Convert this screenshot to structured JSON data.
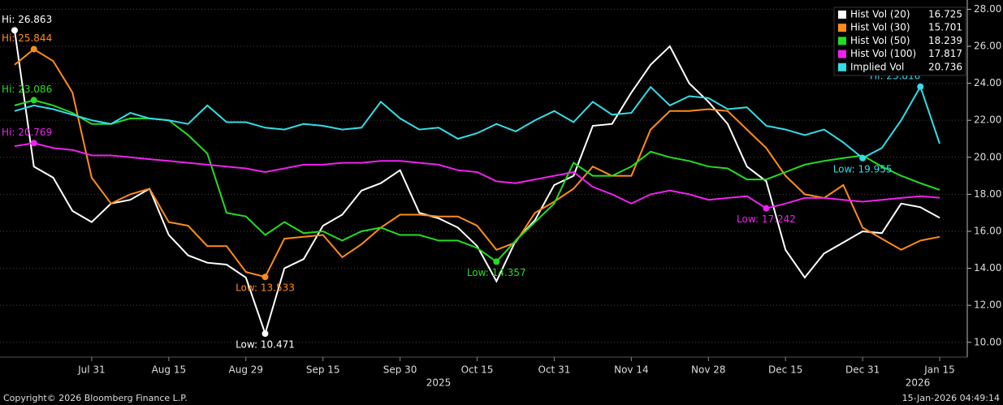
{
  "chart_data": {
    "type": "line",
    "categories": [
      null,
      null,
      null,
      null,
      "Jul 31",
      null,
      null,
      null,
      "Aug 15",
      null,
      null,
      null,
      "Aug 29",
      null,
      null,
      null,
      "Sep 15",
      null,
      null,
      null,
      "Sep 30",
      null,
      null,
      null,
      "Oct 15",
      null,
      null,
      null,
      "Oct 31",
      null,
      null,
      null,
      "Nov 14",
      null,
      null,
      null,
      "Nov 28",
      null,
      null,
      null,
      "Dec 15",
      null,
      null,
      null,
      "Dec 31",
      null,
      null,
      null,
      "Jan 15"
    ],
    "year_labels": [
      "2025",
      "2026"
    ],
    "series": [
      {
        "name": "Hist Vol (20)",
        "color": "#ffffff",
        "hi_label": "Hi: 26.863",
        "low_label": "Low: 10.471",
        "values": [
          26.863,
          19.5,
          18.9,
          17.1,
          16.5,
          17.5,
          17.7,
          18.3,
          15.8,
          14.7,
          14.3,
          14.2,
          13.5,
          10.471,
          14.0,
          14.5,
          16.3,
          16.9,
          18.2,
          18.6,
          19.3,
          17.0,
          16.7,
          16.2,
          15.2,
          13.3,
          15.5,
          16.6,
          18.5,
          19.0,
          21.7,
          21.8,
          23.5,
          25.0,
          26.0,
          24.0,
          23.0,
          21.8,
          19.5,
          18.7,
          15.0,
          13.5,
          14.8,
          15.4,
          16.0,
          15.9,
          17.5,
          17.3,
          16.725
        ]
      },
      {
        "name": "Hist Vol (30)",
        "color": "#ff8c1a",
        "hi_label": "Hi: 25.844",
        "low_label": "Low: 13.533",
        "values": [
          25.0,
          25.844,
          25.2,
          23.5,
          18.9,
          17.5,
          18.0,
          18.3,
          16.5,
          16.3,
          15.2,
          15.2,
          13.8,
          13.533,
          15.6,
          15.7,
          15.8,
          14.6,
          15.3,
          16.2,
          16.9,
          16.9,
          16.8,
          16.8,
          16.3,
          15.0,
          15.4,
          17.0,
          17.6,
          18.3,
          19.5,
          19.0,
          19.0,
          21.5,
          22.5,
          22.5,
          22.6,
          22.5,
          21.5,
          20.5,
          19.0,
          18.0,
          17.8,
          18.5,
          16.2,
          15.6,
          15.0,
          15.5,
          15.701
        ]
      },
      {
        "name": "Hist Vol (50)",
        "color": "#22dd22",
        "hi_label": "Hi: 23.086",
        "low_label": "Low: 14.357",
        "values": [
          22.8,
          23.086,
          22.8,
          22.4,
          21.8,
          21.8,
          22.1,
          22.1,
          22.0,
          21.2,
          20.2,
          17.0,
          16.8,
          15.8,
          16.5,
          15.9,
          16.0,
          15.5,
          16.0,
          16.2,
          15.8,
          15.8,
          15.5,
          15.5,
          15.1,
          14.357,
          15.5,
          16.5,
          17.5,
          19.7,
          19.0,
          19.0,
          19.5,
          20.3,
          20.0,
          19.8,
          19.5,
          19.4,
          18.8,
          18.8,
          19.2,
          19.6,
          19.8,
          19.955,
          20.1,
          19.5,
          19.0,
          18.6,
          18.239
        ]
      },
      {
        "name": "Hist Vol (100)",
        "color": "#ee22ee",
        "hi_label": "Hi: 20.769",
        "low_label": "Low: 17.242",
        "values": [
          20.6,
          20.769,
          20.5,
          20.4,
          20.1,
          20.1,
          20.0,
          19.9,
          19.8,
          19.7,
          19.6,
          19.5,
          19.4,
          19.2,
          19.4,
          19.6,
          19.6,
          19.7,
          19.7,
          19.8,
          19.8,
          19.7,
          19.6,
          19.3,
          19.2,
          18.7,
          18.6,
          18.8,
          19.0,
          19.2,
          18.4,
          18.0,
          17.5,
          18.0,
          18.2,
          18.0,
          17.7,
          17.8,
          17.9,
          17.242,
          17.5,
          17.8,
          17.8,
          17.7,
          17.6,
          17.7,
          17.8,
          17.9,
          17.817
        ]
      },
      {
        "name": "Implied Vol",
        "color": "#33dde8",
        "hi_label": "Hi: 23.816",
        "low_label": "Low: 19.955",
        "values": [
          22.5,
          22.8,
          22.6,
          22.3,
          22.0,
          21.8,
          22.4,
          22.1,
          22.0,
          21.8,
          22.8,
          21.9,
          21.9,
          21.6,
          21.5,
          21.8,
          21.7,
          21.5,
          21.6,
          23.0,
          22.1,
          21.5,
          21.6,
          21.0,
          21.3,
          21.8,
          21.4,
          22.0,
          22.5,
          21.9,
          23.0,
          22.3,
          22.4,
          23.8,
          22.8,
          23.3,
          23.2,
          22.6,
          22.7,
          21.7,
          21.5,
          21.2,
          21.5,
          20.8,
          19.955,
          20.5,
          22.0,
          23.816,
          20.736
        ]
      }
    ],
    "ylim": [
      9.2,
      28.5
    ],
    "yticks": [
      {
        "value": 10,
        "label": "10.00"
      },
      {
        "value": 12,
        "label": "12.00"
      },
      {
        "value": 14,
        "label": "14.00"
      },
      {
        "value": 16,
        "label": "16.00"
      },
      {
        "value": 18,
        "label": "18.00"
      },
      {
        "value": 20,
        "label": "20.00"
      },
      {
        "value": 22,
        "label": "22.00"
      },
      {
        "value": 24,
        "label": "24.00"
      },
      {
        "value": 26,
        "label": "26.00"
      },
      {
        "value": 28,
        "label": "28.00"
      }
    ],
    "grid": true,
    "legend": "top-right",
    "footer_left": "Copyright© 2026 Bloomberg Finance L.P.",
    "footer_right": "15-Jan-2026 04:49:14"
  }
}
